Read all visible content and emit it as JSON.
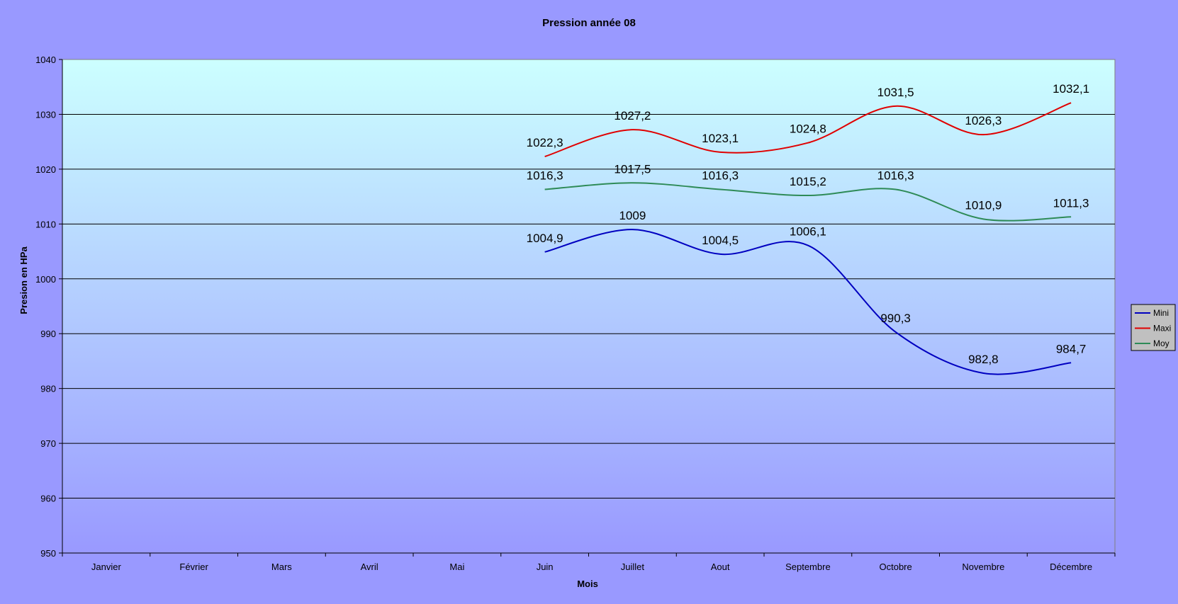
{
  "chart_data": {
    "type": "line",
    "title": "Pression année 08",
    "xlabel": "Mois",
    "ylabel": "Presion en HPa",
    "categories": [
      "Janvier",
      "Février",
      "Mars",
      "Avril",
      "Mai",
      "Juin",
      "Juillet",
      "Aout",
      "Septembre",
      "Octobre",
      "Novembre",
      "Décembre"
    ],
    "ylim": [
      950,
      1040
    ],
    "yticks": [
      "950",
      "960",
      "970",
      "980",
      "990",
      "1000",
      "1010",
      "1020",
      "1030",
      "1040"
    ],
    "grid": true,
    "legend_position": "right",
    "series": [
      {
        "name": "Mini",
        "color": "#0000c0",
        "values": [
          null,
          null,
          null,
          null,
          null,
          1004.9,
          1009,
          1004.5,
          1006.1,
          990.3,
          982.8,
          984.7
        ],
        "labels": [
          "",
          "",
          "",
          "",
          "",
          "1004,9",
          "1009",
          "1004,5",
          "1006,1",
          "990,3",
          "982,8",
          "984,7"
        ]
      },
      {
        "name": "Maxi",
        "color": "#e00000",
        "values": [
          null,
          null,
          null,
          null,
          null,
          1022.3,
          1027.2,
          1023.1,
          1024.8,
          1031.5,
          1026.3,
          1032.1
        ],
        "labels": [
          "",
          "",
          "",
          "",
          "",
          "1022,3",
          "1027,2",
          "1023,1",
          "1024,8",
          "1031,5",
          "1026,3",
          "1032,1"
        ]
      },
      {
        "name": "Moy",
        "color": "#2e8b57",
        "values": [
          null,
          null,
          null,
          null,
          null,
          1016.3,
          1017.5,
          1016.3,
          1015.2,
          1016.3,
          1010.9,
          1011.3
        ],
        "labels": [
          "",
          "",
          "",
          "",
          "",
          "1016,3",
          "1017,5",
          "1016,3",
          "1015,2",
          "1016,3",
          "1010,9",
          "1011,3"
        ]
      }
    ]
  },
  "colors": {
    "page_background": "#9999ff",
    "plot_gradient_top": "#ccffff",
    "plot_gradient_bottom": "#9999ff",
    "gridline": "#000000",
    "legend_background": "#c0c0c0"
  }
}
